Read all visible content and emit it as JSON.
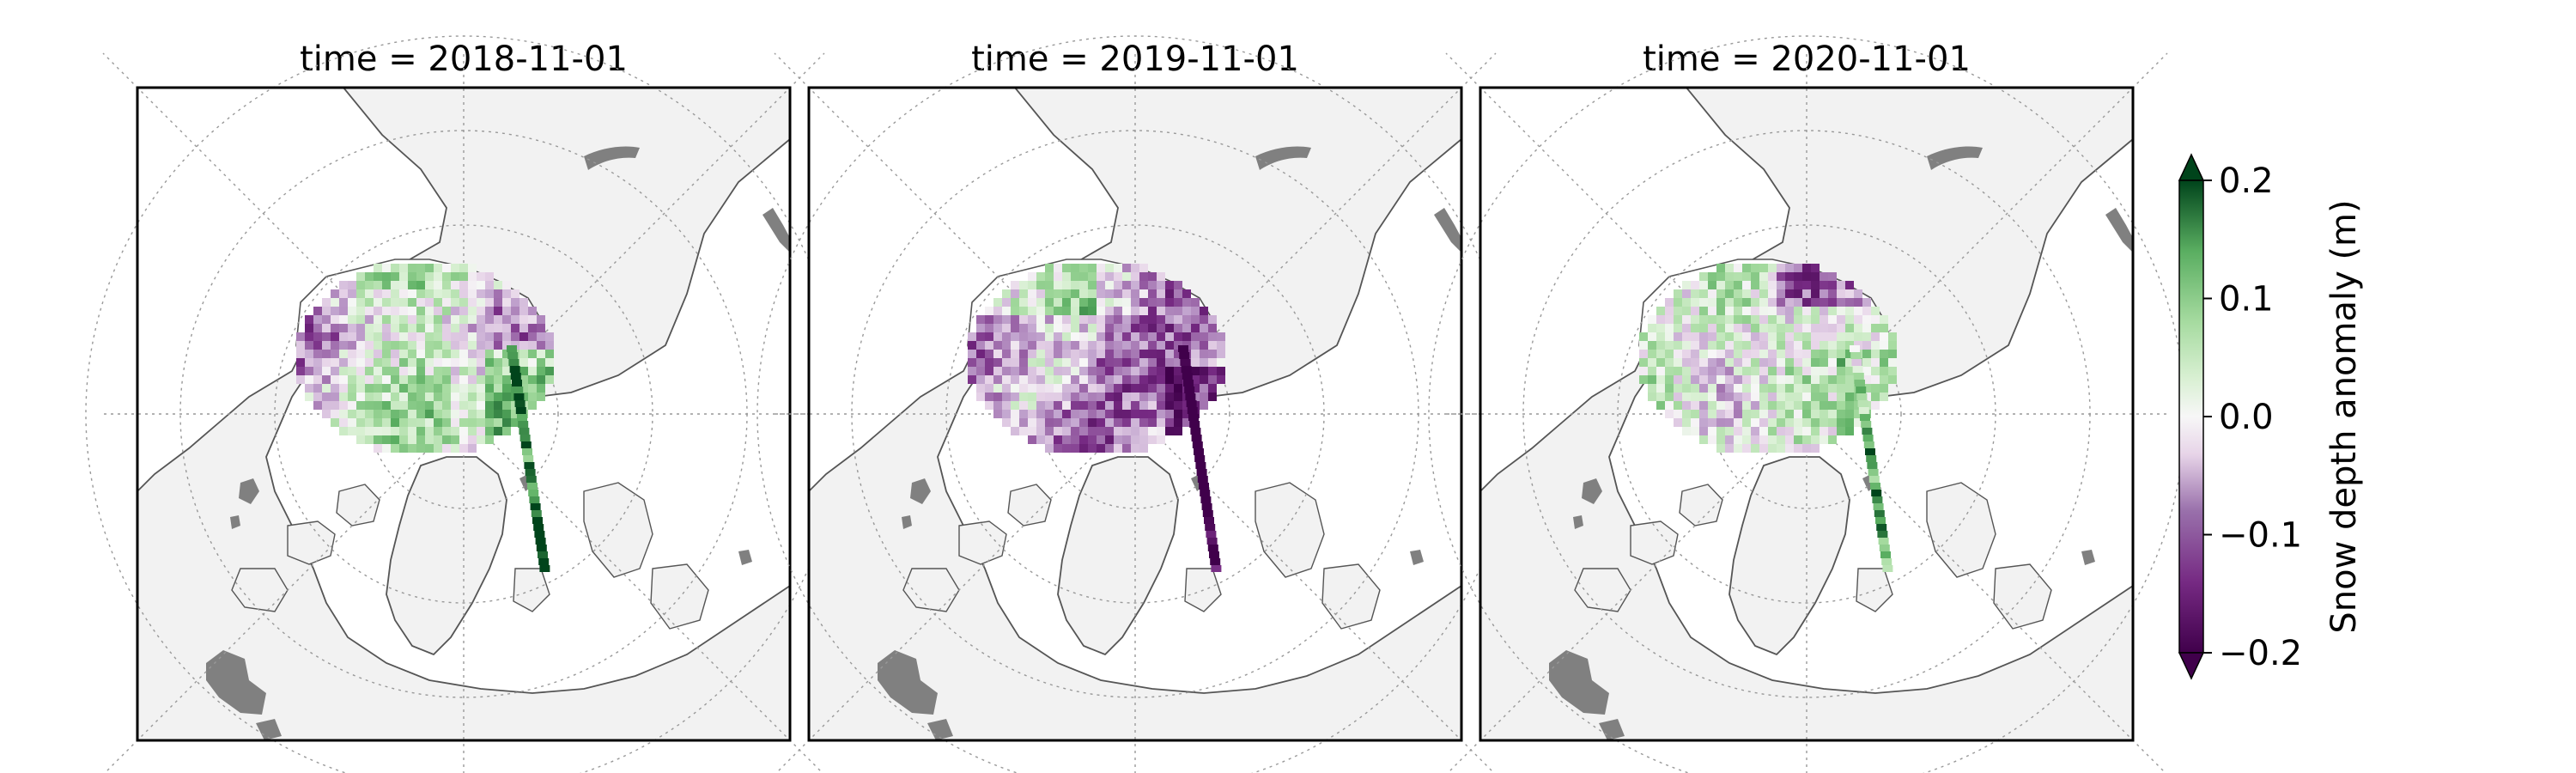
{
  "panels": [
    {
      "title": "time = 2018-11-01",
      "pattern": "2018"
    },
    {
      "title": "time = 2019-11-01",
      "pattern": "2019"
    },
    {
      "title": "time = 2020-11-01",
      "pattern": "2020"
    }
  ],
  "colorbar": {
    "label": "Snow depth anomaly (m)",
    "min": -0.2,
    "max": 0.2,
    "ticks": [
      {
        "value": 0.2,
        "label": "0.2"
      },
      {
        "value": 0.1,
        "label": "0.1"
      },
      {
        "value": 0.0,
        "label": "0.0"
      },
      {
        "value": -0.1,
        "label": "−0.1"
      },
      {
        "value": -0.2,
        "label": "−0.2"
      }
    ],
    "extend": "both",
    "colormap": "PRGn",
    "colors": {
      "low": "#40004b",
      "mid_low": "#c2a5cf",
      "mid": "#f7f7f7",
      "mid_high": "#a6dba0",
      "high": "#00441b"
    }
  },
  "map": {
    "projection": "north-polar-stereographic",
    "land_color": "#f2f2f2",
    "ocean_color": "#ffffff",
    "coastline_color": "#555555",
    "glacier_color": "#808080",
    "gridlines": "dotted"
  }
}
